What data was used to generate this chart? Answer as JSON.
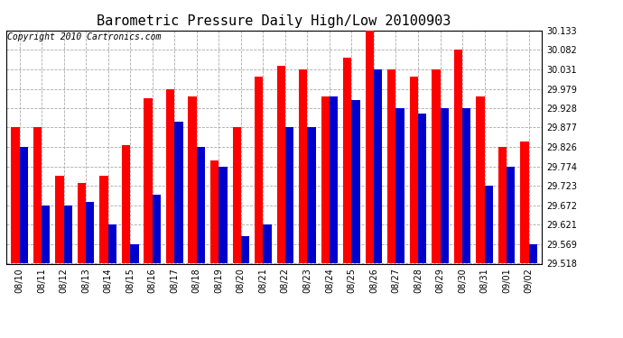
{
  "title": "Barometric Pressure Daily High/Low 20100903",
  "copyright": "Copyright 2010 Cartronics.com",
  "dates": [
    "08/10",
    "08/11",
    "08/12",
    "08/13",
    "08/14",
    "08/15",
    "08/16",
    "08/17",
    "08/18",
    "08/19",
    "08/20",
    "08/21",
    "08/22",
    "08/23",
    "08/24",
    "08/25",
    "08/26",
    "08/27",
    "08/28",
    "08/29",
    "08/30",
    "08/31",
    "09/01",
    "09/02"
  ],
  "highs": [
    29.877,
    29.877,
    29.75,
    29.73,
    29.75,
    29.83,
    29.955,
    29.979,
    29.96,
    29.79,
    29.877,
    30.01,
    30.04,
    30.031,
    29.96,
    30.06,
    30.133,
    30.031,
    30.01,
    30.031,
    30.082,
    29.96,
    29.826,
    29.84
  ],
  "lows": [
    29.826,
    29.672,
    29.672,
    29.68,
    29.621,
    29.569,
    29.7,
    29.893,
    29.826,
    29.774,
    29.591,
    29.621,
    29.877,
    29.877,
    29.96,
    29.95,
    30.031,
    29.928,
    29.913,
    29.928,
    29.928,
    29.723,
    29.774,
    29.569
  ],
  "ymin": 29.518,
  "ymax": 30.133,
  "yticks": [
    29.518,
    29.569,
    29.621,
    29.672,
    29.723,
    29.774,
    29.826,
    29.877,
    29.928,
    29.979,
    30.031,
    30.082,
    30.133
  ],
  "bar_width": 0.38,
  "high_color": "#FF0000",
  "low_color": "#0000CC",
  "bg_color": "#FFFFFF",
  "grid_color": "#AAAAAA",
  "title_fontsize": 11,
  "tick_fontsize": 7,
  "copyright_fontsize": 7
}
